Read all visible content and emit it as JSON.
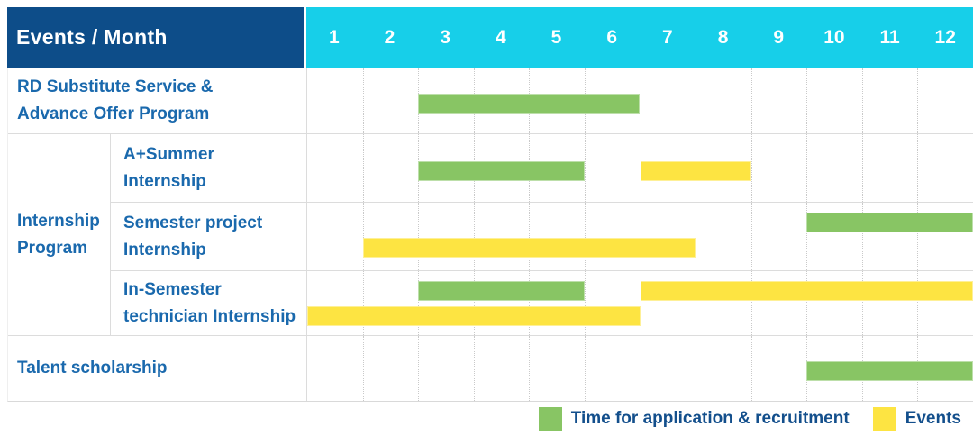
{
  "header": {
    "title": "Events / Month",
    "months": [
      "1",
      "2",
      "3",
      "4",
      "5",
      "6",
      "7",
      "8",
      "9",
      "10",
      "11",
      "12"
    ]
  },
  "colors": {
    "header_bg": "#0d4d89",
    "months_bg": "#17cfe9",
    "recruitment": "#88c564",
    "event": "#fde442",
    "label_text": "#1a69ad",
    "legend_text": "#134f8c",
    "grid_line": "#dcdcdc"
  },
  "rows": [
    {
      "lines": [
        "RD Substitute Service &",
        "Advance Offer Program"
      ],
      "bars": [
        {
          "type": "recruitment",
          "start": 3,
          "end": 6,
          "lane": "single"
        }
      ]
    },
    {
      "group_lines": [
        "Internship",
        "Program"
      ],
      "lines": [
        "A+Summer",
        "Internship"
      ],
      "bars": [
        {
          "type": "recruitment",
          "start": 3,
          "end": 5,
          "lane": "single"
        },
        {
          "type": "event",
          "start": 7,
          "end": 8,
          "lane": "single"
        }
      ]
    },
    {
      "lines": [
        "Semester project",
        "Internship"
      ],
      "bars": [
        {
          "type": "recruitment",
          "start": 10,
          "end": 12,
          "lane": "top"
        },
        {
          "type": "event",
          "start": 2,
          "end": 7,
          "lane": "bottom"
        }
      ]
    },
    {
      "lines": [
        "In-Semester",
        "technician Internship"
      ],
      "bars": [
        {
          "type": "recruitment",
          "start": 3,
          "end": 5,
          "lane": "top"
        },
        {
          "type": "event",
          "start": 7,
          "end": 12,
          "lane": "top"
        },
        {
          "type": "event",
          "start": 1,
          "end": 6,
          "lane": "bottom"
        }
      ]
    },
    {
      "lines": [
        "Talent scholarship"
      ],
      "bars": [
        {
          "type": "recruitment",
          "start": 10,
          "end": 12,
          "lane": "single"
        }
      ]
    }
  ],
  "legend": [
    {
      "type": "recruitment",
      "label": "Time for application & recruitment"
    },
    {
      "type": "event",
      "label": "Events"
    }
  ],
  "chart_data": {
    "type": "table",
    "title": "Events / Month",
    "columns": [
      "1",
      "2",
      "3",
      "4",
      "5",
      "6",
      "7",
      "8",
      "9",
      "10",
      "11",
      "12"
    ],
    "legend": {
      "green": "Time for application & recruitment",
      "yellow": "Events"
    },
    "rows": [
      {
        "event": "RD Substitute Service & Advance Offer Program",
        "group": null,
        "application_recruitment_month_ranges": [
          [
            3,
            6
          ]
        ],
        "event_month_ranges": []
      },
      {
        "event": "A+Summer Internship",
        "group": "Internship Program",
        "application_recruitment_month_ranges": [
          [
            3,
            5
          ]
        ],
        "event_month_ranges": [
          [
            7,
            8
          ]
        ]
      },
      {
        "event": "Semester project Internship",
        "group": "Internship Program",
        "application_recruitment_month_ranges": [
          [
            10,
            12
          ]
        ],
        "event_month_ranges": [
          [
            2,
            7
          ]
        ]
      },
      {
        "event": "In-Semester technician Internship",
        "group": "Internship Program",
        "application_recruitment_month_ranges": [
          [
            3,
            5
          ]
        ],
        "event_month_ranges": [
          [
            1,
            6
          ],
          [
            7,
            12
          ]
        ]
      },
      {
        "event": "Talent scholarship",
        "group": null,
        "application_recruitment_month_ranges": [
          [
            10,
            12
          ]
        ],
        "event_month_ranges": []
      }
    ]
  }
}
